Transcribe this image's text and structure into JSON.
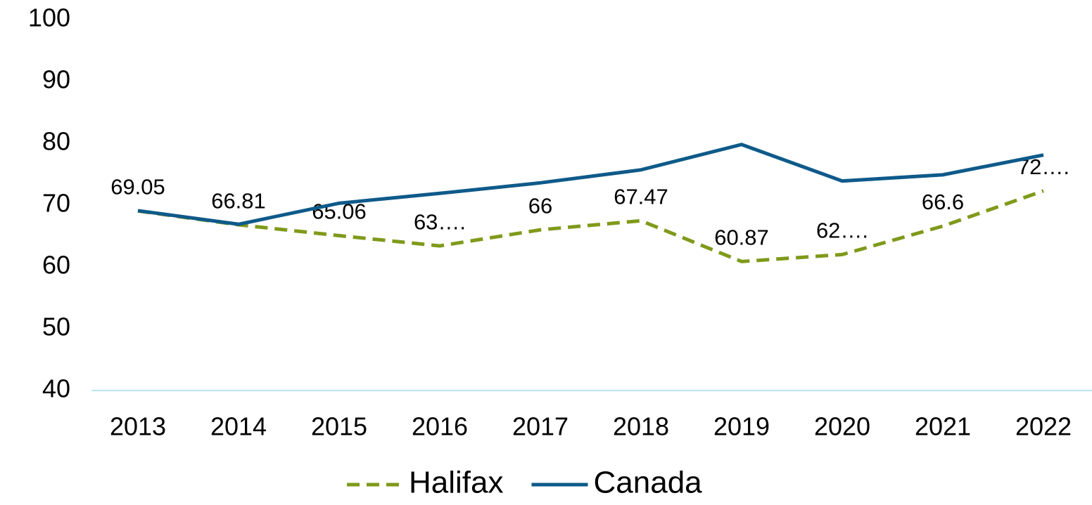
{
  "chart_data": {
    "type": "line",
    "categories": [
      "2013",
      "2014",
      "2015",
      "2016",
      "2017",
      "2018",
      "2019",
      "2020",
      "2021",
      "2022"
    ],
    "series": [
      {
        "name": "Halifax",
        "color": "#7f9a1a",
        "dashed": true,
        "values": [
          69.05,
          66.81,
          65.06,
          63.4,
          66,
          67.47,
          60.87,
          62,
          66.6,
          72.3
        ],
        "value_labels": [
          "69.05",
          "66.81",
          "65.06",
          "63….",
          "66",
          "67.47",
          "60.87",
          "62….",
          "66.6",
          "72…."
        ]
      },
      {
        "name": "Canada",
        "color": "#0e5a8a",
        "dashed": false,
        "values": [
          69.1,
          66.9,
          70.3,
          71.9,
          73.6,
          75.7,
          79.8,
          73.9,
          74.9,
          78.1
        ]
      }
    ],
    "ylim": [
      40,
      100
    ],
    "yticks": [
      40,
      50,
      60,
      70,
      80,
      90,
      100
    ],
    "grid": false,
    "legend": "bottom"
  }
}
